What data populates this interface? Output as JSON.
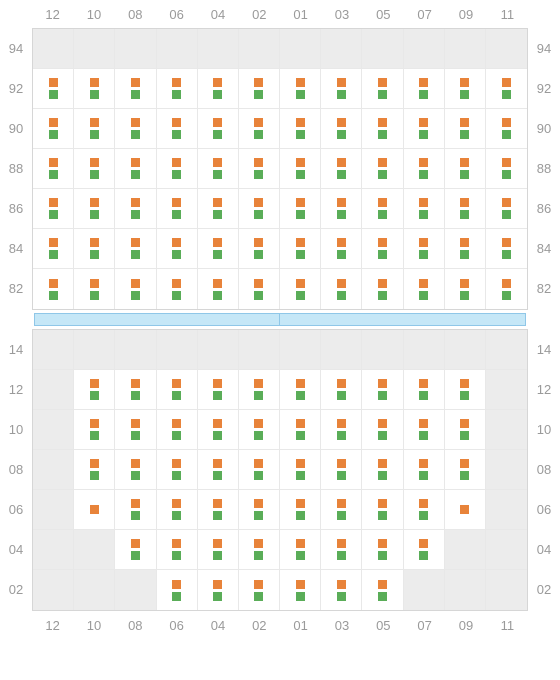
{
  "columns": [
    "12",
    "10",
    "08",
    "06",
    "04",
    "02",
    "01",
    "03",
    "05",
    "07",
    "09",
    "11"
  ],
  "upper": {
    "rows": [
      "94",
      "92",
      "90",
      "88",
      "86",
      "84",
      "82"
    ],
    "layout": [
      [
        "e",
        "e",
        "e",
        "e",
        "e",
        "e",
        "e",
        "e",
        "e",
        "e",
        "e",
        "e"
      ],
      [
        "og",
        "og",
        "og",
        "og",
        "og",
        "og",
        "og",
        "og",
        "og",
        "og",
        "og",
        "og"
      ],
      [
        "og",
        "og",
        "og",
        "og",
        "og",
        "og",
        "og",
        "og",
        "og",
        "og",
        "og",
        "og"
      ],
      [
        "og",
        "og",
        "og",
        "og",
        "og",
        "og",
        "og",
        "og",
        "og",
        "og",
        "og",
        "og"
      ],
      [
        "og",
        "og",
        "og",
        "og",
        "og",
        "og",
        "og",
        "og",
        "og",
        "og",
        "og",
        "og"
      ],
      [
        "og",
        "og",
        "og",
        "og",
        "og",
        "og",
        "og",
        "og",
        "og",
        "og",
        "og",
        "og"
      ],
      [
        "og",
        "og",
        "og",
        "og",
        "og",
        "og",
        "og",
        "og",
        "og",
        "og",
        "og",
        "og"
      ]
    ]
  },
  "lower": {
    "rows": [
      "14",
      "12",
      "10",
      "08",
      "06",
      "04",
      "02"
    ],
    "layout": [
      [
        "e",
        "e",
        "e",
        "e",
        "e",
        "e",
        "e",
        "e",
        "e",
        "e",
        "e",
        "e"
      ],
      [
        "e",
        "og",
        "og",
        "og",
        "og",
        "og",
        "og",
        "og",
        "og",
        "og",
        "og",
        "e"
      ],
      [
        "e",
        "og",
        "og",
        "og",
        "og",
        "og",
        "og",
        "og",
        "og",
        "og",
        "og",
        "e"
      ],
      [
        "e",
        "og",
        "og",
        "og",
        "og",
        "og",
        "og",
        "og",
        "og",
        "og",
        "og",
        "e"
      ],
      [
        "e",
        "o",
        "og",
        "og",
        "og",
        "og",
        "og",
        "og",
        "og",
        "og",
        "o",
        "e"
      ],
      [
        "e",
        "e",
        "og",
        "og",
        "og",
        "og",
        "og",
        "og",
        "og",
        "og",
        "e",
        "e"
      ],
      [
        "e",
        "e",
        "e",
        "og",
        "og",
        "og",
        "og",
        "og",
        "og",
        "e",
        "e",
        "e"
      ]
    ]
  },
  "colors": {
    "seat_top": "#e8833a",
    "seat_bottom": "#5aad58",
    "empty_bg": "#ececec",
    "grid_line": "#e8e8e8",
    "label": "#9a9a9a",
    "bar_fill": "#c5e7f7",
    "bar_border": "#8fc7e8"
  }
}
